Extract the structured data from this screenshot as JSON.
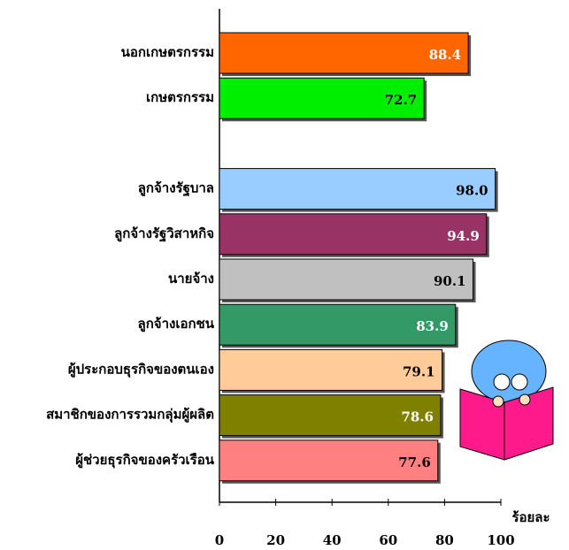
{
  "chart_data": {
    "type": "bar",
    "orientation": "horizontal",
    "categories": [
      "นอกเกษตรกรรม",
      "เกษตรกรรม",
      null,
      "ลูกจ้างรัฐบาล",
      "ลูกจ้างรัฐวิสาหกิจ",
      "นายจ้าง",
      "ลูกจ้างเอกชน",
      "ผู้ประกอบธุรกิจของตนเอง",
      "สมาชิกของการรวมกลุ่มผู้ผลิต",
      "ผู้ช่วยธุรกิจของครัวเรือน"
    ],
    "values": [
      88.4,
      72.7,
      null,
      98.0,
      94.9,
      90.1,
      83.9,
      79.1,
      78.6,
      77.6
    ],
    "value_labels": [
      "88.4",
      "72.7",
      null,
      "98.0",
      "94.9",
      "90.1",
      "83.9",
      "79.1",
      "78.6",
      "77.6"
    ],
    "colors": [
      "#ff6600",
      "#00ee00",
      null,
      "#99ccff",
      "#993366",
      "#c0c0c0",
      "#339966",
      "#ffcc99",
      "#808000",
      "#ff8080"
    ],
    "label_colors": [
      "#ffffff",
      "#000000",
      null,
      "#000000",
      "#ffffff",
      "#000000",
      "#ffffff",
      "#000000",
      "#ffffff",
      "#000000"
    ],
    "x_label": "ร้อยละ",
    "xlim": [
      0,
      100
    ],
    "xticks": [
      0,
      20,
      40,
      60,
      80,
      100
    ]
  }
}
